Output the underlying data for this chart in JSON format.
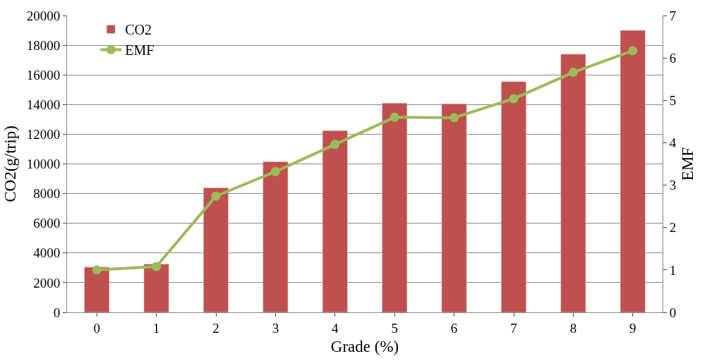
{
  "chart_data": {
    "type": "bar",
    "xlabel": "Grade (%)",
    "ylabel": "CO2(g/trip)",
    "y2label": "EMF",
    "categories": [
      "0",
      "1",
      "2",
      "3",
      "4",
      "5",
      "6",
      "7",
      "8",
      "9"
    ],
    "series": [
      {
        "name": "CO2",
        "color": "#c0504d",
        "values": [
          3050,
          3250,
          8400,
          10150,
          12250,
          14100,
          14050,
          15550,
          17400,
          19000
        ]
      },
      {
        "name": "EMF",
        "type": "line",
        "axis": "y2",
        "color": "#9bbb59",
        "marker": "circle",
        "values": [
          1.0,
          1.08,
          2.74,
          3.32,
          3.96,
          4.6,
          4.59,
          5.04,
          5.66,
          6.17
        ]
      }
    ],
    "ylim": [
      0,
      20000
    ],
    "yticks": [
      0,
      2000,
      4000,
      6000,
      8000,
      10000,
      12000,
      14000,
      16000,
      18000,
      20000
    ],
    "y2lim": [
      0,
      7
    ],
    "y2ticks": [
      0,
      1,
      2,
      3,
      4,
      5,
      6,
      7
    ],
    "grid": "y",
    "legend": "top left"
  }
}
